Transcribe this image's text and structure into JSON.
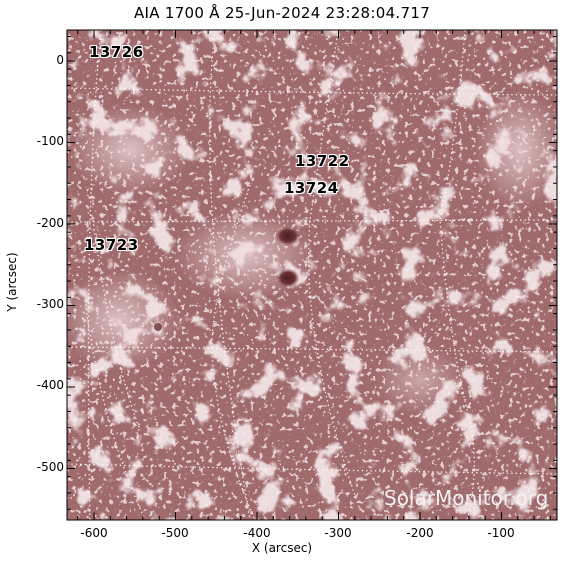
{
  "title": "AIA 1700 Å 25-Jun-2024 23:28:04.717",
  "x_axis": {
    "label": "X (arcsec)",
    "ticks": [
      "-600",
      "-500",
      "-400",
      "-300",
      "-200",
      "-100"
    ]
  },
  "y_axis": {
    "label": "Y (arcsec)",
    "ticks": [
      "0",
      "-100",
      "-200",
      "-300",
      "-400",
      "-500"
    ]
  },
  "active_regions": [
    {
      "id": "13726",
      "label": "13726"
    },
    {
      "id": "13722",
      "label": "13722"
    },
    {
      "id": "13724",
      "label": "13724"
    },
    {
      "id": "13723",
      "label": "13723"
    }
  ],
  "watermark": "SolarMonitor.org",
  "colors": {
    "image_base": "#a06a6c",
    "plage": "#e8cfd1",
    "grid": "#ffffff",
    "sunspot": "#5a2a2e"
  }
}
